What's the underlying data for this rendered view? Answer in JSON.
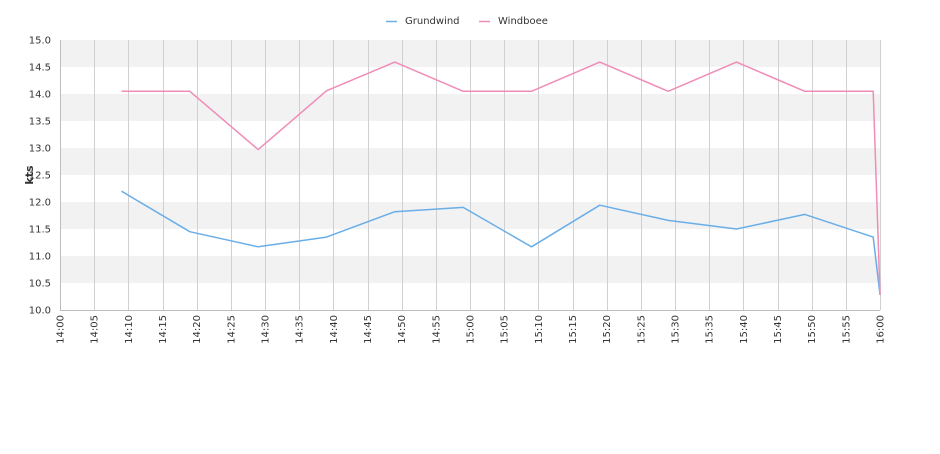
{
  "chart_data": {
    "type": "line",
    "ylabel": "kts",
    "xlabel": "",
    "ylim": [
      10.0,
      15.0
    ],
    "yticks": [
      "10.0",
      "10.5",
      "11.0",
      "11.5",
      "12.0",
      "12.5",
      "13.0",
      "13.5",
      "14.0",
      "14.5",
      "15.0"
    ],
    "xlim": [
      "14:00",
      "16:00"
    ],
    "xticks": [
      "14:00",
      "14:05",
      "14:10",
      "14:15",
      "14:20",
      "14:25",
      "14:30",
      "14:35",
      "14:40",
      "14:45",
      "14:50",
      "14:55",
      "15:00",
      "15:05",
      "15:10",
      "15:15",
      "15:20",
      "15:25",
      "15:30",
      "15:35",
      "15:40",
      "15:45",
      "15:50",
      "15:55",
      "16:00"
    ],
    "grid": true,
    "legend_position": "top-center",
    "series": [
      {
        "name": "Grundwind",
        "color": "#6aaee8",
        "points": [
          [
            "14:09",
            12.2
          ],
          [
            "14:19",
            11.45
          ],
          [
            "14:29",
            11.17
          ],
          [
            "14:39",
            11.35
          ],
          [
            "14:49",
            11.82
          ],
          [
            "14:59",
            11.9
          ],
          [
            "15:09",
            11.17
          ],
          [
            "15:19",
            11.94
          ],
          [
            "15:29",
            11.66
          ],
          [
            "15:39",
            11.5
          ],
          [
            "15:49",
            11.77
          ],
          [
            "15:59",
            11.35
          ],
          [
            "16:00",
            10.28
          ]
        ]
      },
      {
        "name": "Windboee",
        "color": "#f08cb8",
        "points": [
          [
            "14:09",
            14.05
          ],
          [
            "14:19",
            14.05
          ],
          [
            "14:29",
            12.97
          ],
          [
            "14:39",
            14.06
          ],
          [
            "14:49",
            14.59
          ],
          [
            "14:59",
            14.05
          ],
          [
            "15:09",
            14.05
          ],
          [
            "15:19",
            14.59
          ],
          [
            "15:29",
            14.05
          ],
          [
            "15:39",
            14.59
          ],
          [
            "15:49",
            14.05
          ],
          [
            "15:59",
            14.05
          ],
          [
            "16:00",
            10.28
          ]
        ]
      }
    ]
  }
}
